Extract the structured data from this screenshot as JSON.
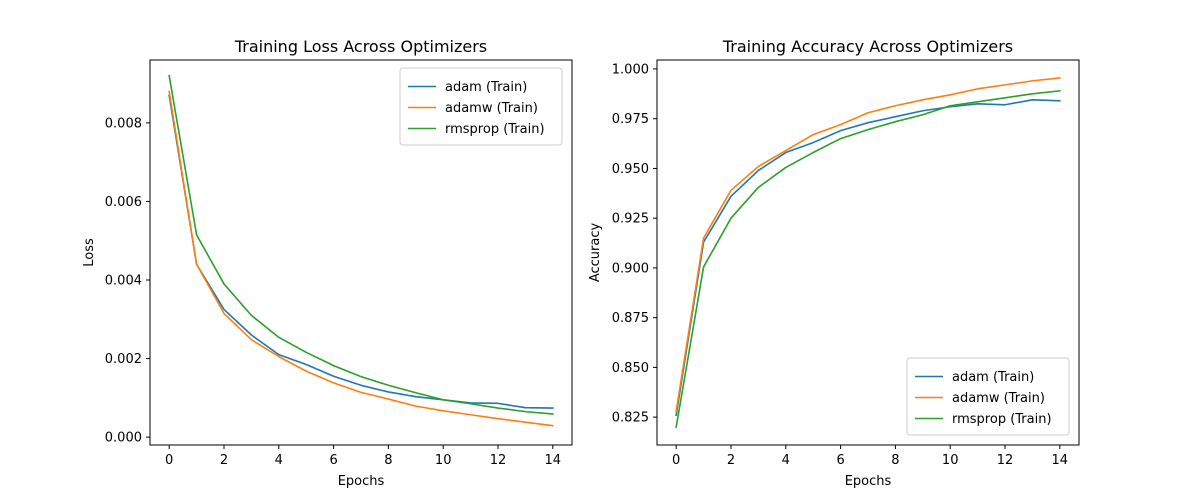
{
  "chart_data": [
    {
      "type": "line",
      "title": "Training Loss Across Optimizers",
      "xlabel": "Epochs",
      "ylabel": "Loss",
      "x": [
        0,
        1,
        2,
        3,
        4,
        5,
        6,
        7,
        8,
        9,
        10,
        11,
        12,
        13,
        14
      ],
      "xlim": [
        -0.7,
        14.7
      ],
      "ylim": [
        -0.0002,
        0.0096
      ],
      "xticks": [
        0,
        2,
        4,
        6,
        8,
        10,
        12,
        14
      ],
      "xtick_labels": [
        "0",
        "2",
        "4",
        "6",
        "8",
        "10",
        "12",
        "14"
      ],
      "yticks": [
        0.0,
        0.002,
        0.004,
        0.006,
        0.008
      ],
      "ytick_labels": [
        "0.000",
        "0.002",
        "0.004",
        "0.006",
        "0.008"
      ],
      "grid": false,
      "legend_position": "top-right",
      "series": [
        {
          "name": "adam (Train)",
          "color": "#1f77b4",
          "values": [
            0.0087,
            0.0044,
            0.00325,
            0.0026,
            0.0021,
            0.00185,
            0.00155,
            0.00132,
            0.00115,
            0.00103,
            0.00095,
            0.00087,
            0.00086,
            0.00075,
            0.00074
          ]
        },
        {
          "name": "adamw (Train)",
          "color": "#ff7f0e",
          "values": [
            0.0088,
            0.0044,
            0.00315,
            0.00248,
            0.00205,
            0.00168,
            0.00138,
            0.00114,
            0.00097,
            0.00079,
            0.00067,
            0.00057,
            0.00047,
            0.00038,
            0.00029
          ]
        },
        {
          "name": "rmsprop (Train)",
          "color": "#2ca02c",
          "values": [
            0.0092,
            0.00515,
            0.0039,
            0.0031,
            0.00254,
            0.00216,
            0.00182,
            0.00154,
            0.00132,
            0.00113,
            0.00095,
            0.00085,
            0.00074,
            0.00065,
            0.00059
          ]
        }
      ]
    },
    {
      "type": "line",
      "title": "Training Accuracy Across Optimizers",
      "xlabel": "Epochs",
      "ylabel": "Accuracy",
      "x": [
        0,
        1,
        2,
        3,
        4,
        5,
        6,
        7,
        8,
        9,
        10,
        11,
        12,
        13,
        14
      ],
      "xlim": [
        -0.7,
        14.7
      ],
      "ylim": [
        0.811,
        1.0045
      ],
      "xticks": [
        0,
        2,
        4,
        6,
        8,
        10,
        12,
        14
      ],
      "xtick_labels": [
        "0",
        "2",
        "4",
        "6",
        "8",
        "10",
        "12",
        "14"
      ],
      "yticks": [
        0.825,
        0.85,
        0.875,
        0.9,
        0.925,
        0.95,
        0.975,
        1.0
      ],
      "ytick_labels": [
        "0.825",
        "0.850",
        "0.875",
        "0.900",
        "0.925",
        "0.950",
        "0.975",
        "1.000"
      ],
      "grid": false,
      "legend_position": "bottom-right",
      "series": [
        {
          "name": "adam (Train)",
          "color": "#1f77b4",
          "values": [
            0.826,
            0.913,
            0.936,
            0.949,
            0.958,
            0.963,
            0.969,
            0.973,
            0.976,
            0.979,
            0.981,
            0.9825,
            0.982,
            0.9845,
            0.984
          ]
        },
        {
          "name": "adamw (Train)",
          "color": "#ff7f0e",
          "values": [
            0.828,
            0.915,
            0.939,
            0.951,
            0.959,
            0.967,
            0.972,
            0.978,
            0.9815,
            0.9845,
            0.987,
            0.99,
            0.992,
            0.994,
            0.9955
          ]
        },
        {
          "name": "rmsprop (Train)",
          "color": "#2ca02c",
          "values": [
            0.82,
            0.9005,
            0.925,
            0.9405,
            0.9505,
            0.958,
            0.965,
            0.9695,
            0.9735,
            0.977,
            0.9815,
            0.9835,
            0.9855,
            0.9875,
            0.989
          ]
        }
      ]
    }
  ]
}
